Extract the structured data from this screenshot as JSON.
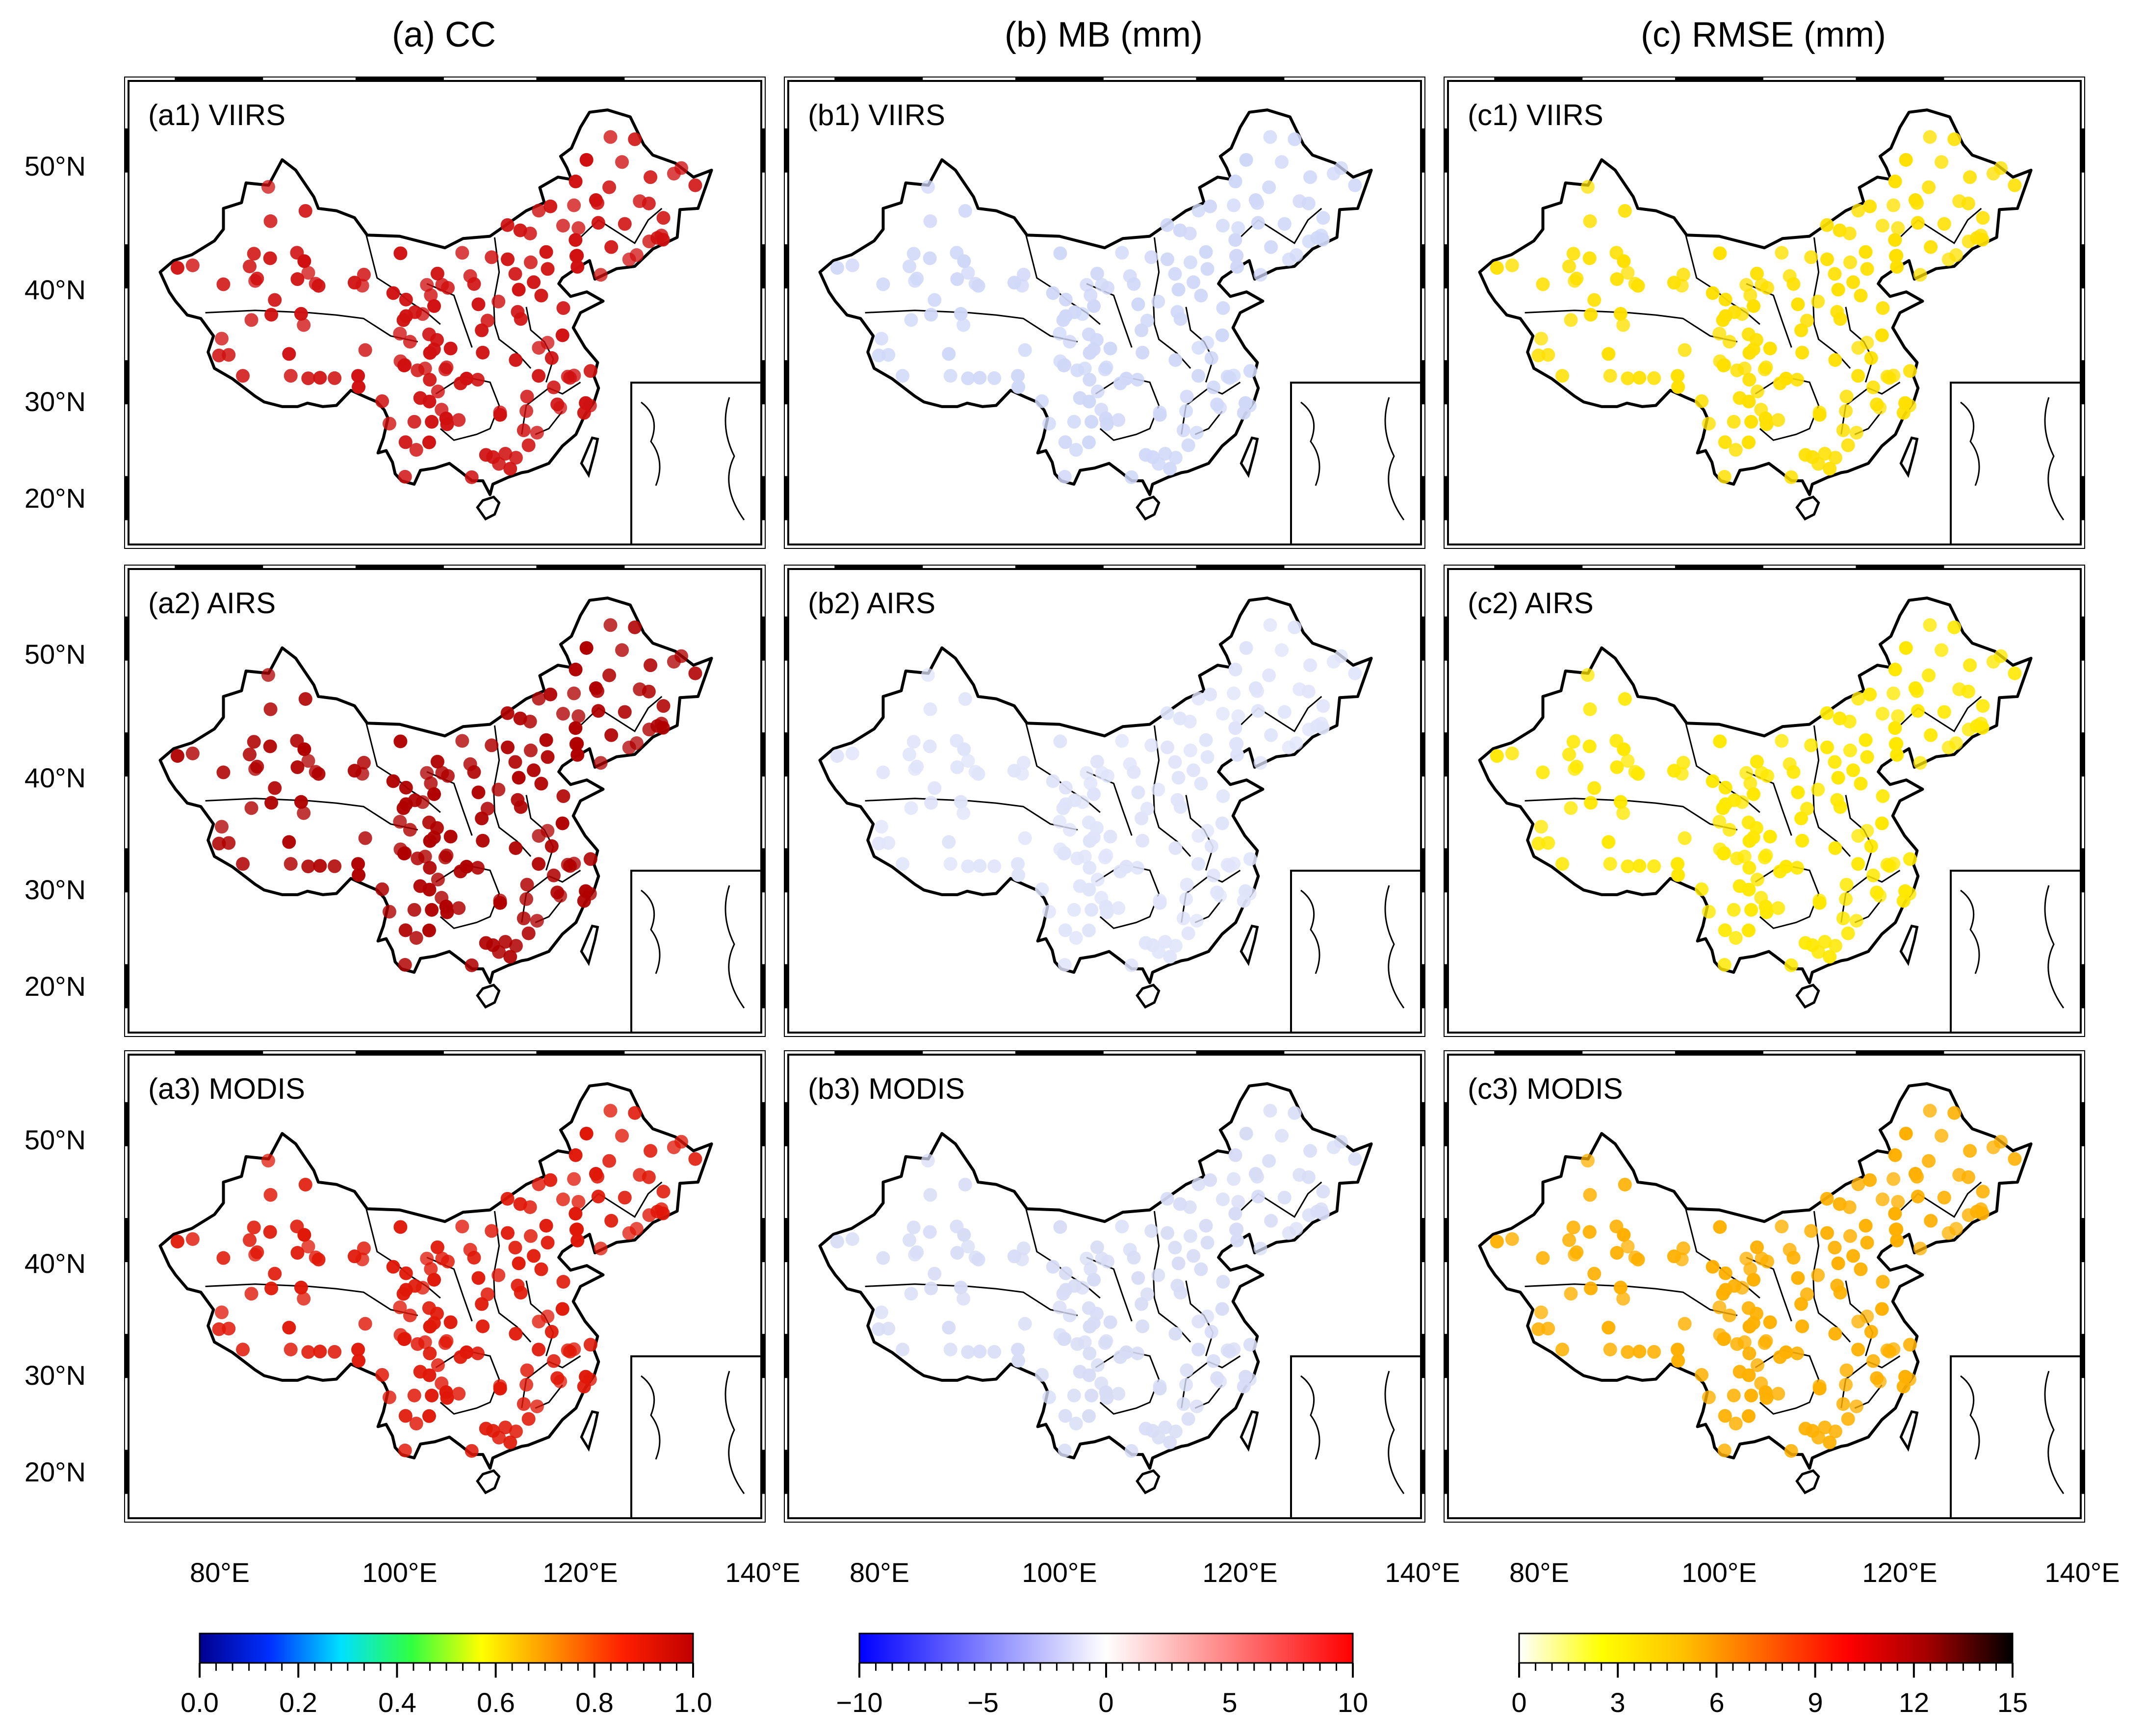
{
  "columns": [
    {
      "title": "(a) CC"
    },
    {
      "title": "(b) MB (mm)"
    },
    {
      "title": "(c) RMSE (mm)"
    }
  ],
  "panels": [
    [
      "(a1) VIIRS",
      "(b1) VIIRS",
      "(c1) VIIRS"
    ],
    [
      "(a2) AIRS",
      "(b2) AIRS",
      "(c2) AIRS"
    ],
    [
      "(a3) MODIS",
      "(b3) MODIS",
      "(c3) MODIS"
    ]
  ],
  "lat_ticks": [
    "50°N",
    "40°N",
    "30°N",
    "20°N"
  ],
  "lon_ticks": [
    "80°E",
    "100°E",
    "120°E",
    "140°E"
  ],
  "colorbars": [
    {
      "ticks": [
        "0.0",
        "0.2",
        "0.4",
        "0.6",
        "0.8",
        "1.0"
      ],
      "min": 0,
      "max": 1,
      "colors": [
        "#00008f",
        "#0030ff",
        "#00e0ff",
        "#30ff40",
        "#ffff00",
        "#ff9000",
        "#ff2000",
        "#c00000"
      ]
    },
    {
      "ticks": [
        "−10",
        "−5",
        "0",
        "5",
        "10"
      ],
      "min": -10,
      "max": 10,
      "colors": [
        "#0000ff",
        "#8080ff",
        "#ffffff",
        "#ff8080",
        "#ff0000"
      ]
    },
    {
      "ticks": [
        "0",
        "3",
        "6",
        "9",
        "12",
        "15"
      ],
      "min": 0,
      "max": 15,
      "colors": [
        "#ffffff",
        "#ffff00",
        "#ffc000",
        "#ff6000",
        "#ff0000",
        "#a00000",
        "#000000"
      ]
    }
  ],
  "map_data": {
    "projection": "equirectangular",
    "lon_range": [
      70,
      140
    ],
    "lat_range": [
      16,
      56
    ],
    "station_colors": [
      [
        "#d01010",
        "#d0d8f8",
        "#ffe000"
      ],
      [
        "#b00000",
        "#e0e4fa",
        "#ffe800"
      ],
      [
        "#e01808",
        "#d8ddf6",
        "#ffb000"
      ]
    ]
  }
}
